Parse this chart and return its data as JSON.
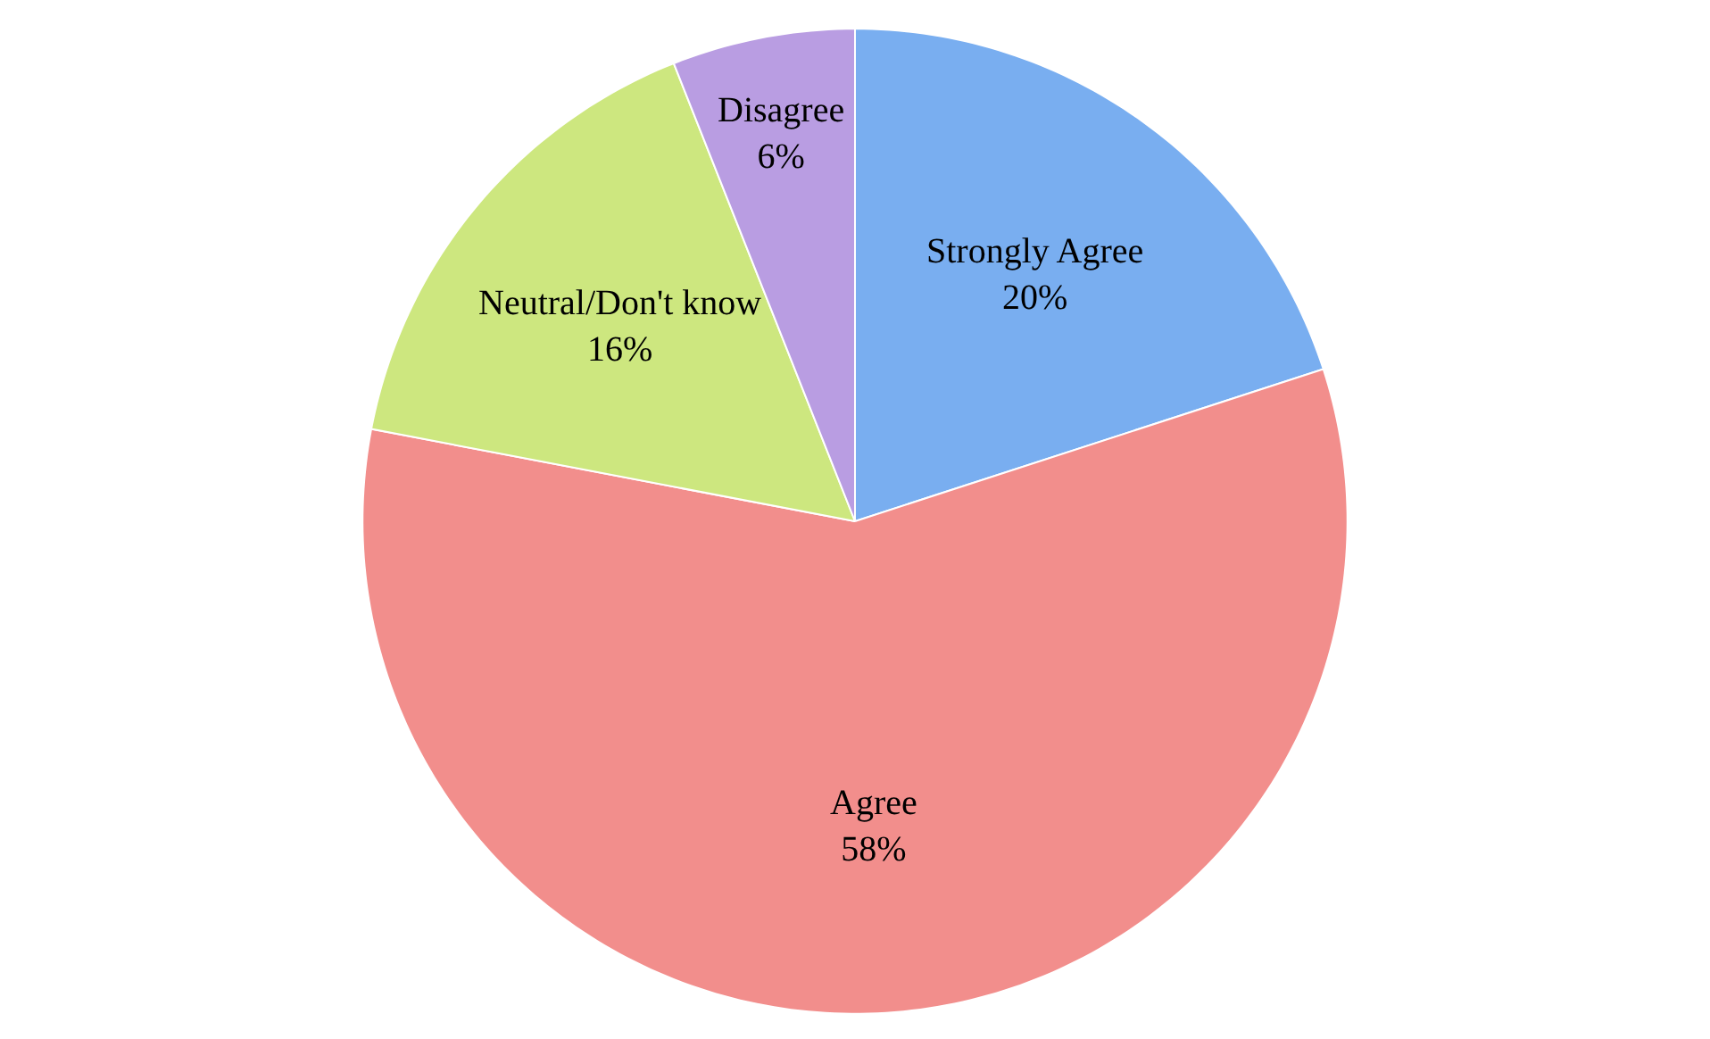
{
  "chart_data": {
    "type": "pie",
    "categories": [
      "Strongly Agree",
      "Agree",
      "Neutral/Don't know",
      "Disagree"
    ],
    "values": [
      20,
      58,
      16,
      6
    ],
    "value_labels": [
      "20%",
      "58%",
      "16%",
      "6%"
    ],
    "colors": [
      "#79aef0",
      "#f28e8c",
      "#cde77f",
      "#b99de2"
    ],
    "legend": false
  }
}
